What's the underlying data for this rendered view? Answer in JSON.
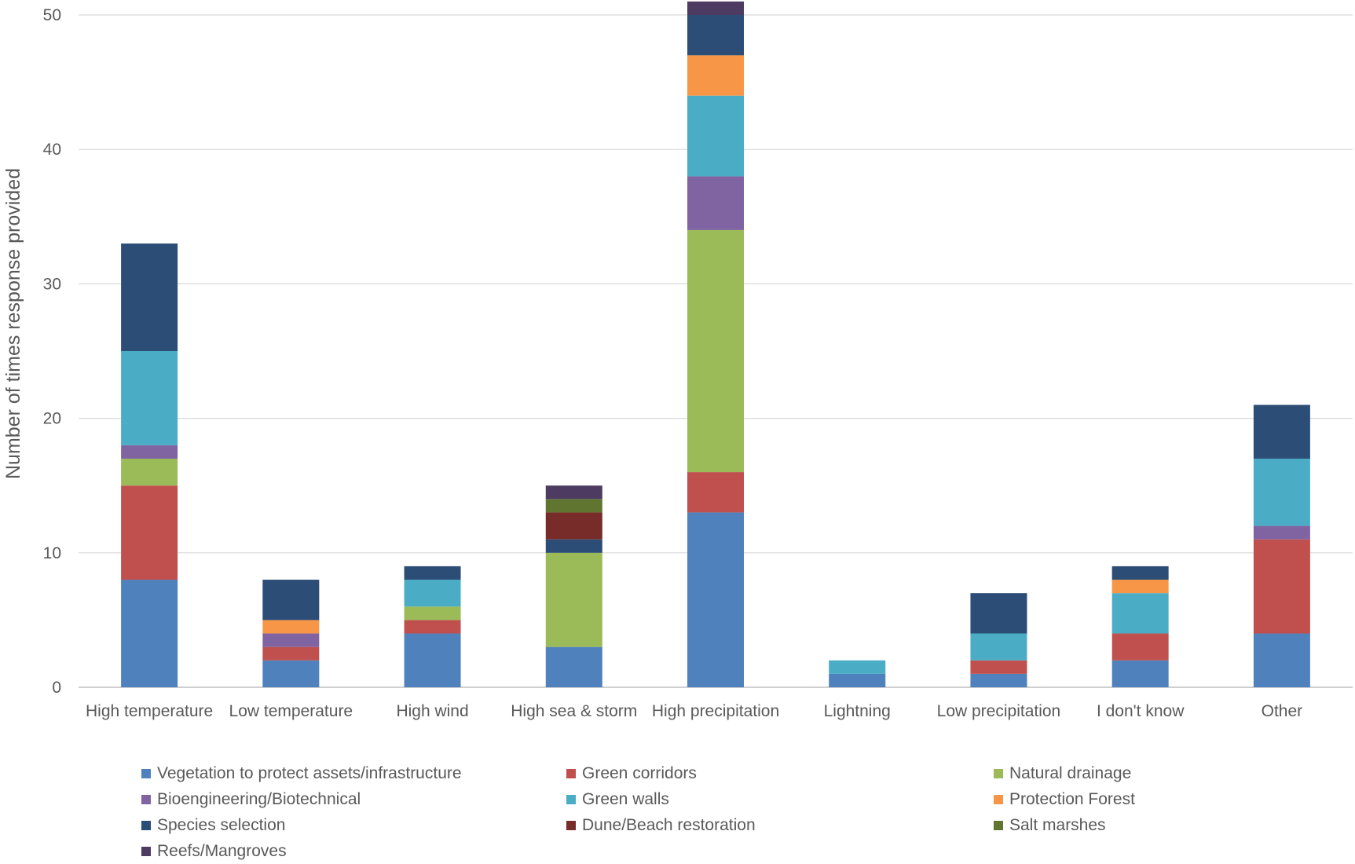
{
  "chart_data": {
    "type": "bar",
    "stacked": true,
    "ylabel": "Number of times response provided",
    "ylim": [
      0,
      50
    ],
    "yticks": [
      0,
      10,
      20,
      30,
      40,
      50
    ],
    "grid": true,
    "legend_position": "bottom",
    "categories": [
      "High temperature",
      "Low temperature",
      "High wind",
      "High sea & storm",
      "High precipitation",
      "Lightning",
      "Low precipitation",
      "I don't know",
      "Other"
    ],
    "series": [
      {
        "name": "Vegetation to protect assets/infrastructure",
        "color": "#4F81BD",
        "values": [
          8,
          2,
          4,
          3,
          13,
          1,
          1,
          2,
          4
        ]
      },
      {
        "name": "Green corridors",
        "color": "#C0504D",
        "values": [
          7,
          1,
          1,
          0,
          3,
          0,
          1,
          2,
          7
        ]
      },
      {
        "name": "Natural drainage",
        "color": "#9BBB59",
        "values": [
          2,
          0,
          1,
          7,
          18,
          0,
          0,
          0,
          0
        ]
      },
      {
        "name": "Bioengineering/Biotechnical",
        "color": "#8064A2",
        "values": [
          1,
          1,
          0,
          0,
          4,
          0,
          0,
          0,
          1
        ]
      },
      {
        "name": "Green walls",
        "color": "#4BACC6",
        "values": [
          7,
          0,
          2,
          0,
          6,
          1,
          2,
          3,
          5
        ]
      },
      {
        "name": "Protection Forest",
        "color": "#F79646",
        "values": [
          0,
          1,
          0,
          0,
          3,
          0,
          0,
          1,
          0
        ]
      },
      {
        "name": "Species selection",
        "color": "#2C4D75",
        "values": [
          8,
          3,
          1,
          1,
          3,
          0,
          3,
          1,
          4
        ]
      },
      {
        "name": "Dune/Beach restoration",
        "color": "#772C2A",
        "values": [
          0,
          0,
          0,
          2,
          0,
          0,
          0,
          0,
          0
        ]
      },
      {
        "name": "Salt marshes",
        "color": "#5F7530",
        "values": [
          0,
          0,
          0,
          1,
          0,
          0,
          0,
          0,
          0
        ]
      },
      {
        "name": "Reefs/Mangroves",
        "color": "#4D3B62",
        "values": [
          0,
          0,
          0,
          1,
          1,
          0,
          0,
          0,
          0
        ]
      }
    ]
  }
}
